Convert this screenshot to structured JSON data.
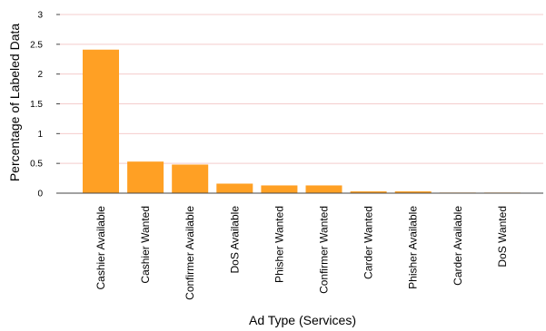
{
  "chart_data": {
    "type": "bar",
    "title": "",
    "xlabel": "Ad Type (Services)",
    "ylabel": "Percentage of Labeled Data",
    "categories": [
      "Cashier Available",
      "Cashier Wanted",
      "Confirmer Available",
      "DoS Available",
      "Phisher Wanted",
      "Confirmer Wanted",
      "Carder Wanted",
      "Phisher Available",
      "Carder Available",
      "DoS Wanted"
    ],
    "values": [
      2.41,
      0.53,
      0.48,
      0.16,
      0.13,
      0.13,
      0.03,
      0.03,
      0.01,
      0.01
    ],
    "ylim": [
      0,
      3
    ],
    "yticks": [
      "0",
      "0.5",
      "1",
      "1.5",
      "2",
      "2.5",
      "3"
    ],
    "grid": true,
    "colors": {
      "bar": "#ffa024",
      "grid": "#f4cccc",
      "axis": "#444444"
    }
  }
}
